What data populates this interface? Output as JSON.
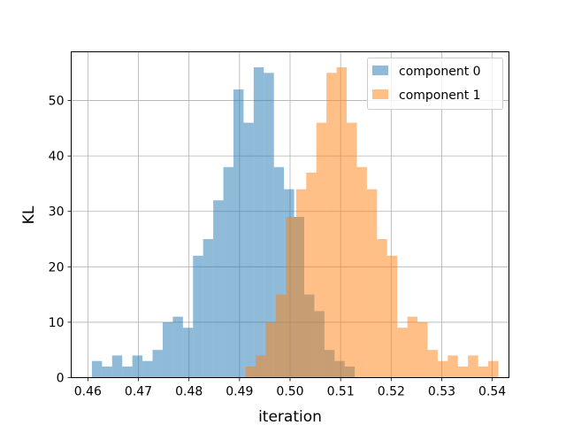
{
  "chart_data": {
    "type": "bar",
    "title": "",
    "xlabel": "iteration",
    "ylabel": "KL",
    "xlim": [
      0.4567,
      0.5433
    ],
    "ylim": [
      0,
      58.8
    ],
    "xticks": [
      0.46,
      0.47,
      0.48,
      0.49,
      0.5,
      0.51,
      0.52,
      0.53,
      0.54
    ],
    "xtick_labels": [
      "0.46",
      "0.47",
      "0.48",
      "0.49",
      "0.50",
      "0.51",
      "0.52",
      "0.53",
      "0.54"
    ],
    "yticks": [
      0,
      10,
      20,
      30,
      40,
      50
    ],
    "ytick_labels": [
      "0",
      "10",
      "20",
      "30",
      "40",
      "50"
    ],
    "grid": true,
    "legend_position": "top-right",
    "series": [
      {
        "name": "component 0",
        "color": "#1f77b4",
        "alpha": 0.5,
        "bin_start": 0.4608,
        "bin_width": 0.002,
        "counts": [
          3,
          2,
          4,
          2,
          4,
          3,
          5,
          10,
          11,
          9,
          22,
          25,
          32,
          38,
          52,
          46,
          56,
          55,
          38,
          34,
          29,
          15,
          12,
          5,
          3,
          2
        ]
      },
      {
        "name": "component 1",
        "color": "#ff7f0e",
        "alpha": 0.5,
        "bin_start": 0.4912,
        "bin_width": 0.002,
        "counts": [
          2,
          4,
          10,
          15,
          29,
          34,
          37,
          46,
          55,
          56,
          46,
          38,
          34,
          25,
          22,
          9,
          11,
          10,
          5,
          3,
          4,
          2,
          4,
          2,
          3
        ]
      }
    ]
  }
}
